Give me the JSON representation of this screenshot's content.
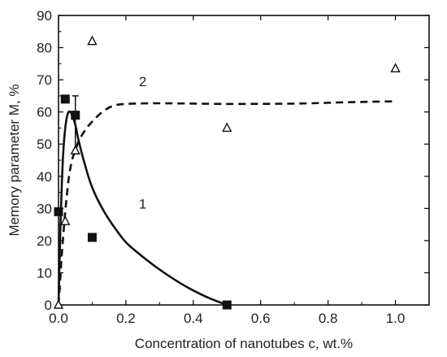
{
  "chart_data": {
    "type": "scatter",
    "xlabel": "Concentration of nanotubes c, wt.%",
    "ylabel": "Memory parameter M, %",
    "xlim": [
      0.0,
      1.1
    ],
    "ylim": [
      0,
      90
    ],
    "x_ticks": [
      0.0,
      0.2,
      0.4,
      0.6,
      0.8,
      1.0
    ],
    "x_tick_labels": [
      "0.0",
      "0.2",
      "0.4",
      "0.6",
      "0.8",
      "1.0"
    ],
    "y_ticks": [
      0,
      10,
      20,
      30,
      40,
      50,
      60,
      70,
      80,
      90
    ],
    "y_tick_labels": [
      "0",
      "10",
      "20",
      "30",
      "40",
      "50",
      "60",
      "70",
      "80",
      "90"
    ],
    "grid": false,
    "series": [
      {
        "marker": "filled-square",
        "color": "#111111",
        "points": [
          {
            "x": 0.0,
            "y": 29
          },
          {
            "x": 0.02,
            "y": 64
          },
          {
            "x": 0.05,
            "y": 59
          },
          {
            "x": 0.1,
            "y": 21
          },
          {
            "x": 0.5,
            "y": 0
          }
        ],
        "error_bar": {
          "x": 0.05,
          "y_low": 47,
          "y_high": 65
        }
      },
      {
        "marker": "open-triangle",
        "color": "#111111",
        "points": [
          {
            "x": 0.0,
            "y": 0
          },
          {
            "x": 0.02,
            "y": 26
          },
          {
            "x": 0.05,
            "y": 48
          },
          {
            "x": 0.1,
            "y": 82
          },
          {
            "x": 0.5,
            "y": 55
          },
          {
            "x": 1.0,
            "y": 73.5
          }
        ]
      }
    ],
    "curves": [
      {
        "label": "1",
        "style": "solid",
        "color": "#111111",
        "points": [
          [
            0.0,
            0
          ],
          [
            0.005,
            22
          ],
          [
            0.01,
            38
          ],
          [
            0.015,
            49
          ],
          [
            0.02,
            55
          ],
          [
            0.025,
            58.5
          ],
          [
            0.03,
            60
          ],
          [
            0.035,
            60
          ],
          [
            0.04,
            59
          ],
          [
            0.05,
            56
          ],
          [
            0.06,
            51
          ],
          [
            0.08,
            43
          ],
          [
            0.1,
            36.5
          ],
          [
            0.13,
            30
          ],
          [
            0.16,
            25
          ],
          [
            0.2,
            19.5
          ],
          [
            0.25,
            15
          ],
          [
            0.3,
            11
          ],
          [
            0.35,
            7.5
          ],
          [
            0.4,
            4.5
          ],
          [
            0.45,
            2
          ],
          [
            0.5,
            0
          ]
        ],
        "label_position": [
          0.25,
          30
        ]
      },
      {
        "label": "2",
        "style": "dashed",
        "color": "#111111",
        "points": [
          [
            0.0,
            0
          ],
          [
            0.005,
            8
          ],
          [
            0.01,
            16
          ],
          [
            0.02,
            29
          ],
          [
            0.03,
            39
          ],
          [
            0.04,
            45
          ],
          [
            0.05,
            48
          ],
          [
            0.06,
            51
          ],
          [
            0.08,
            54.5
          ],
          [
            0.1,
            57
          ],
          [
            0.13,
            60
          ],
          [
            0.16,
            61.8
          ],
          [
            0.2,
            62.5
          ],
          [
            0.3,
            62.7
          ],
          [
            0.5,
            62.5
          ],
          [
            0.7,
            62.6
          ],
          [
            0.85,
            63
          ],
          [
            1.0,
            63.3
          ]
        ],
        "label_position": [
          0.25,
          68
        ]
      }
    ]
  }
}
